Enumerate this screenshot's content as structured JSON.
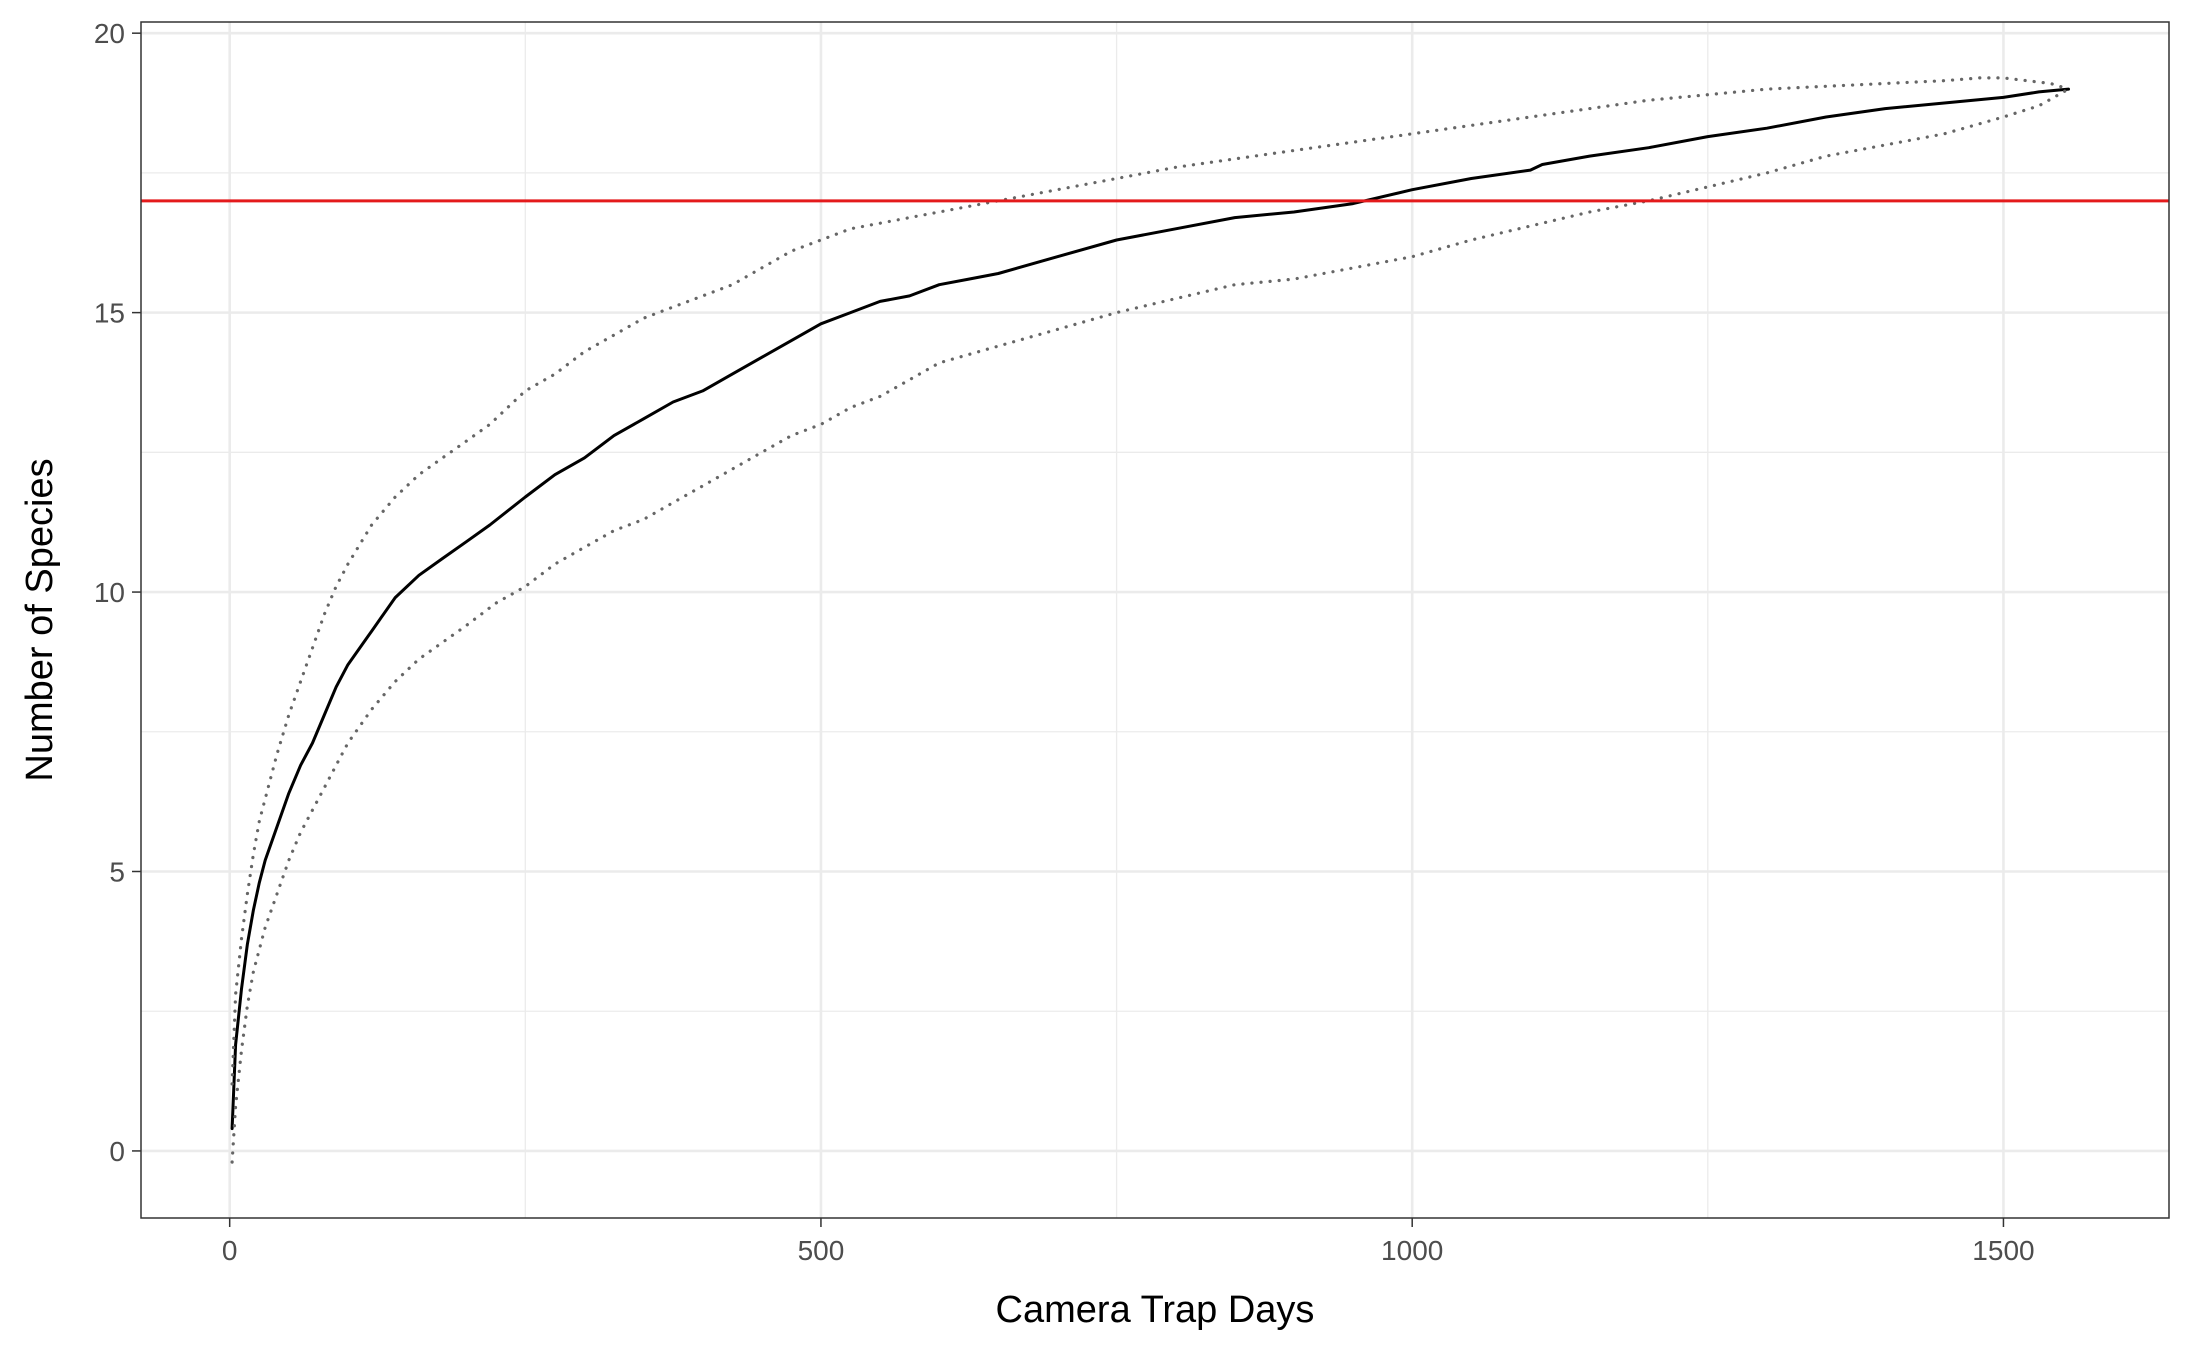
{
  "chart_data": {
    "type": "line",
    "title": "",
    "xlabel": "Camera Trap Days",
    "ylabel": "Number of Species",
    "xlim": [
      -75,
      1640
    ],
    "ylim": [
      -1.2,
      20.2
    ],
    "x_ticks": [
      0,
      500,
      1000,
      1500
    ],
    "x_minor_ticks": [
      250,
      750,
      1250
    ],
    "y_ticks": [
      0,
      5,
      10,
      15,
      20
    ],
    "y_minor_ticks": [
      2.5,
      7.5,
      12.5,
      17.5
    ],
    "grid": true,
    "reference_line": {
      "y": 17,
      "color": "#e41a1c"
    },
    "colors": {
      "mean": "#000000",
      "bounds": "#666666",
      "grid": "#ebebeb",
      "panel_border": "#333333"
    },
    "series": [
      {
        "style": "solid",
        "x": [
          2,
          5,
          10,
          15,
          20,
          25,
          30,
          40,
          50,
          60,
          70,
          80,
          90,
          100,
          120,
          140,
          160,
          180,
          200,
          220,
          250,
          275,
          300,
          325,
          350,
          375,
          400,
          425,
          450,
          475,
          500,
          525,
          550,
          575,
          600,
          625,
          650,
          700,
          750,
          800,
          850,
          900,
          950,
          1000,
          1050,
          1100,
          1110,
          1150,
          1200,
          1250,
          1300,
          1350,
          1400,
          1450,
          1500,
          1530,
          1555
        ],
        "y": [
          0.4,
          1.9,
          2.9,
          3.7,
          4.3,
          4.8,
          5.2,
          5.8,
          6.4,
          6.9,
          7.3,
          7.8,
          8.3,
          8.7,
          9.3,
          9.9,
          10.3,
          10.6,
          10.9,
          11.2,
          11.7,
          12.1,
          12.4,
          12.8,
          13.1,
          13.4,
          13.6,
          13.9,
          14.2,
          14.5,
          14.8,
          15.0,
          15.2,
          15.3,
          15.5,
          15.6,
          15.7,
          16.0,
          16.3,
          16.5,
          16.7,
          16.8,
          16.95,
          17.2,
          17.4,
          17.55,
          17.65,
          17.8,
          17.95,
          18.15,
          18.3,
          18.5,
          18.65,
          18.75,
          18.85,
          18.95,
          19.0
        ]
      },
      {
        "style": "dotted",
        "x": [
          2,
          5,
          10,
          15,
          20,
          25,
          30,
          40,
          50,
          60,
          70,
          80,
          90,
          100,
          120,
          140,
          160,
          180,
          200,
          220,
          250,
          275,
          300,
          325,
          350,
          375,
          400,
          425,
          450,
          475,
          500,
          525,
          550,
          575,
          600,
          650,
          700,
          750,
          800,
          850,
          900,
          950,
          1000,
          1050,
          1100,
          1150,
          1200,
          1250,
          1300,
          1350,
          1400,
          1450,
          1480,
          1500,
          1520,
          1540,
          1555
        ],
        "y": [
          1.2,
          2.8,
          3.8,
          4.6,
          5.3,
          5.9,
          6.3,
          7.1,
          7.8,
          8.4,
          9.0,
          9.6,
          10.1,
          10.5,
          11.2,
          11.7,
          12.1,
          12.4,
          12.7,
          13.0,
          13.6,
          13.9,
          14.3,
          14.6,
          14.9,
          15.1,
          15.3,
          15.5,
          15.8,
          16.1,
          16.3,
          16.5,
          16.6,
          16.7,
          16.8,
          17.0,
          17.2,
          17.4,
          17.6,
          17.75,
          17.9,
          18.05,
          18.2,
          18.35,
          18.5,
          18.65,
          18.8,
          18.9,
          19.0,
          19.05,
          19.1,
          19.15,
          19.2,
          19.2,
          19.15,
          19.1,
          19.0
        ]
      },
      {
        "style": "dotted",
        "x": [
          2,
          5,
          10,
          15,
          20,
          30,
          40,
          50,
          60,
          70,
          80,
          90,
          100,
          120,
          140,
          160,
          180,
          200,
          225,
          250,
          275,
          300,
          325,
          350,
          375,
          400,
          425,
          450,
          475,
          500,
          525,
          550,
          575,
          600,
          650,
          700,
          750,
          800,
          850,
          900,
          950,
          1000,
          1050,
          1100,
          1150,
          1200,
          1250,
          1300,
          1350,
          1400,
          1450,
          1500,
          1530,
          1555
        ],
        "y": [
          -0.2,
          0.8,
          1.8,
          2.6,
          3.2,
          4.0,
          4.6,
          5.2,
          5.7,
          6.1,
          6.5,
          6.9,
          7.3,
          7.9,
          8.4,
          8.8,
          9.1,
          9.4,
          9.8,
          10.1,
          10.5,
          10.8,
          11.1,
          11.3,
          11.6,
          11.9,
          12.2,
          12.5,
          12.8,
          13.0,
          13.3,
          13.5,
          13.8,
          14.1,
          14.4,
          14.7,
          15.0,
          15.25,
          15.5,
          15.6,
          15.8,
          16.0,
          16.3,
          16.55,
          16.8,
          17.0,
          17.25,
          17.5,
          17.8,
          18.0,
          18.2,
          18.5,
          18.7,
          19.0
        ]
      }
    ]
  }
}
